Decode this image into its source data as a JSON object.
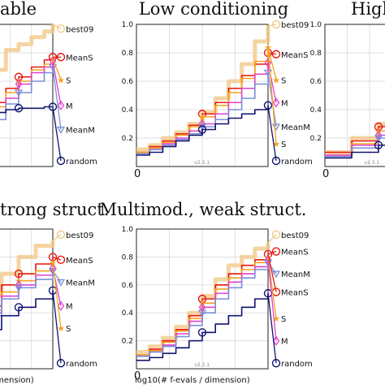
{
  "figure": {
    "version_label": "v2.3.1",
    "x_label": "log10(# f-evals / dimension)",
    "x_label_clipped": "dimension)",
    "zero_tick": "0"
  },
  "chart_data": [
    {
      "type": "line",
      "title": "able",
      "ylim": [
        0,
        1
      ],
      "yticks": [],
      "grid": true,
      "legend": [
        "best09",
        "MeanS",
        "S",
        "M",
        "MeanM",
        "random"
      ],
      "series": [
        {
          "name": "best09",
          "color": "#f2c98a",
          "x": [
            0,
            0.1,
            0.2,
            0.3,
            0.45,
            0.6,
            0.75,
            0.9,
            1.0
          ],
          "y": [
            0.25,
            0.35,
            0.55,
            0.68,
            0.82,
            0.86,
            0.91,
            0.95,
            1.0
          ]
        },
        {
          "name": "MeanS",
          "color": "#e8160c",
          "x": [
            0,
            0.15,
            0.3,
            0.45,
            0.6,
            0.75,
            0.9,
            1.0
          ],
          "y": [
            0.2,
            0.3,
            0.45,
            0.55,
            0.63,
            0.7,
            0.75,
            0.77
          ]
        },
        {
          "name": "S",
          "color": "#f5a21e",
          "x": [
            0,
            0.15,
            0.3,
            0.45,
            0.6,
            0.75,
            0.9,
            1.0
          ],
          "y": [
            0.2,
            0.28,
            0.42,
            0.52,
            0.6,
            0.68,
            0.72,
            0.76
          ]
        },
        {
          "name": "M",
          "color": "#e040d0",
          "x": [
            0,
            0.15,
            0.3,
            0.45,
            0.6,
            0.75,
            0.9,
            1.0
          ],
          "y": [
            0.18,
            0.25,
            0.38,
            0.48,
            0.58,
            0.66,
            0.7,
            0.74
          ]
        },
        {
          "name": "MeanM",
          "color": "#7a8fd8",
          "x": [
            0,
            0.15,
            0.3,
            0.45,
            0.6,
            0.75,
            0.9,
            1.0
          ],
          "y": [
            0.16,
            0.22,
            0.33,
            0.44,
            0.52,
            0.6,
            0.66,
            0.7
          ]
        },
        {
          "name": "random",
          "color": "#101570",
          "x": [
            0,
            0.15,
            0.3,
            0.45,
            0.6,
            0.75,
            0.9,
            1.0
          ],
          "y": [
            0.35,
            0.37,
            0.38,
            0.4,
            0.41,
            0.41,
            0.42,
            0.42
          ]
        }
      ],
      "legend_end_y": [
        0.97,
        0.77,
        0.61,
        0.43,
        0.26,
        0.04
      ]
    },
    {
      "type": "line",
      "title": "Low conditioning",
      "ylim": [
        0,
        1
      ],
      "yticks": [
        "0.2",
        "0.4",
        "0.6",
        "0.8",
        "1.0"
      ],
      "grid": true,
      "legend": [
        "best09",
        "MeanS",
        "S",
        "M",
        "MeanM",
        "S",
        "random"
      ],
      "series": [
        {
          "name": "best09",
          "color": "#f2c98a",
          "x": [
            0,
            0.1,
            0.2,
            0.3,
            0.4,
            0.5,
            0.6,
            0.7,
            0.8,
            0.9,
            1.0
          ],
          "y": [
            0.12,
            0.15,
            0.2,
            0.24,
            0.3,
            0.38,
            0.48,
            0.6,
            0.72,
            0.88,
            0.99
          ]
        },
        {
          "name": "MeanS",
          "color": "#e8160c",
          "x": [
            0,
            0.1,
            0.2,
            0.3,
            0.4,
            0.5,
            0.6,
            0.7,
            0.8,
            0.9,
            1.0
          ],
          "y": [
            0.1,
            0.14,
            0.18,
            0.23,
            0.29,
            0.37,
            0.45,
            0.55,
            0.64,
            0.72,
            0.8
          ]
        },
        {
          "name": "S",
          "color": "#f5a21e",
          "x": [
            0,
            0.1,
            0.2,
            0.3,
            0.4,
            0.5,
            0.6,
            0.7,
            0.8,
            0.9,
            1.0
          ],
          "y": [
            0.1,
            0.13,
            0.17,
            0.22,
            0.28,
            0.35,
            0.43,
            0.52,
            0.62,
            0.74,
            0.84
          ]
        },
        {
          "name": "M",
          "color": "#e040d0",
          "x": [
            0,
            0.1,
            0.2,
            0.3,
            0.4,
            0.5,
            0.6,
            0.7,
            0.8,
            0.9,
            1.0
          ],
          "y": [
            0.09,
            0.12,
            0.16,
            0.2,
            0.25,
            0.3,
            0.37,
            0.45,
            0.55,
            0.65,
            0.73
          ]
        },
        {
          "name": "MeanM",
          "color": "#7a8fd8",
          "x": [
            0,
            0.1,
            0.2,
            0.3,
            0.4,
            0.5,
            0.6,
            0.7,
            0.8,
            0.9,
            1.0
          ],
          "y": [
            0.09,
            0.12,
            0.15,
            0.19,
            0.23,
            0.28,
            0.33,
            0.4,
            0.48,
            0.58,
            0.66
          ]
        },
        {
          "name": "random",
          "color": "#101570",
          "x": [
            0,
            0.1,
            0.2,
            0.3,
            0.4,
            0.5,
            0.6,
            0.7,
            0.8,
            0.9,
            1.0
          ],
          "y": [
            0.08,
            0.1,
            0.14,
            0.18,
            0.22,
            0.26,
            0.3,
            0.34,
            0.37,
            0.4,
            0.43
          ]
        }
      ],
      "legend_end_y": [
        1.0,
        0.79,
        0.61,
        0.45,
        0.28,
        0.16,
        0.04
      ]
    },
    {
      "type": "line",
      "title": "High",
      "ylim": [
        0,
        1
      ],
      "yticks": [
        "0.2",
        "0.4",
        "0.6",
        "0.8",
        "1.0"
      ],
      "grid": true,
      "legend": [],
      "series": [
        {
          "name": "best09",
          "color": "#f2c98a",
          "x": [
            0,
            0.3,
            0.6,
            1.0
          ],
          "y": [
            0.1,
            0.2,
            0.3,
            0.4
          ]
        },
        {
          "name": "MeanS",
          "color": "#e8160c",
          "x": [
            0,
            0.3,
            0.6,
            1.0
          ],
          "y": [
            0.1,
            0.18,
            0.28,
            0.38
          ]
        },
        {
          "name": "S",
          "color": "#f5a21e",
          "x": [
            0,
            0.3,
            0.6,
            1.0
          ],
          "y": [
            0.08,
            0.16,
            0.25,
            0.34
          ]
        },
        {
          "name": "M",
          "color": "#e040d0",
          "x": [
            0,
            0.3,
            0.6,
            1.0
          ],
          "y": [
            0.08,
            0.15,
            0.22,
            0.3
          ]
        },
        {
          "name": "MeanM",
          "color": "#7a8fd8",
          "x": [
            0,
            0.3,
            0.6,
            1.0
          ],
          "y": [
            0.07,
            0.13,
            0.2,
            0.27
          ]
        },
        {
          "name": "random",
          "color": "#101570",
          "x": [
            0,
            0.3,
            0.6,
            1.0
          ],
          "y": [
            0.06,
            0.1,
            0.15,
            0.2
          ]
        }
      ],
      "legend_end_y": []
    },
    {
      "type": "line",
      "title": "trong struct.",
      "ylim": [
        0,
        1
      ],
      "yticks": [],
      "grid": true,
      "legend": [
        "best09",
        "MeanS",
        "MeanM",
        "M",
        "S",
        "random"
      ],
      "series": [
        {
          "name": "best09",
          "color": "#f2c98a",
          "x": [
            0,
            0.2,
            0.4,
            0.6,
            0.8,
            1.0
          ],
          "y": [
            0.35,
            0.52,
            0.68,
            0.8,
            0.88,
            0.92
          ]
        },
        {
          "name": "MeanS",
          "color": "#e8160c",
          "x": [
            0,
            0.2,
            0.4,
            0.6,
            0.8,
            1.0
          ],
          "y": [
            0.3,
            0.45,
            0.6,
            0.68,
            0.75,
            0.8
          ]
        },
        {
          "name": "S",
          "color": "#f5a21e",
          "x": [
            0,
            0.2,
            0.4,
            0.6,
            0.8,
            1.0
          ],
          "y": [
            0.28,
            0.42,
            0.55,
            0.63,
            0.7,
            0.76
          ]
        },
        {
          "name": "M",
          "color": "#e040d0",
          "x": [
            0,
            0.2,
            0.4,
            0.6,
            0.8,
            1.0
          ],
          "y": [
            0.26,
            0.4,
            0.52,
            0.6,
            0.67,
            0.72
          ]
        },
        {
          "name": "MeanM",
          "color": "#7a8fd8",
          "x": [
            0,
            0.2,
            0.4,
            0.6,
            0.8,
            1.0
          ],
          "y": [
            0.25,
            0.38,
            0.5,
            0.58,
            0.64,
            0.7
          ]
        },
        {
          "name": "random",
          "color": "#101570",
          "x": [
            0,
            0.2,
            0.4,
            0.6,
            0.8,
            1.0
          ],
          "y": [
            0.2,
            0.28,
            0.38,
            0.44,
            0.5,
            0.56
          ]
        }
      ],
      "legend_end_y": [
        0.96,
        0.78,
        0.62,
        0.45,
        0.29,
        0.04
      ]
    },
    {
      "type": "line",
      "title": "Multimod., weak struct.",
      "ylim": [
        0,
        1
      ],
      "yticks": [
        "0.2",
        "0.4",
        "0.6",
        "0.8",
        "1.0"
      ],
      "grid": true,
      "legend": [
        "best09",
        "MeanS",
        "MeanM",
        "MeanS",
        "S",
        "M",
        "random"
      ],
      "series": [
        {
          "name": "best09",
          "color": "#f2c98a",
          "x": [
            0,
            0.1,
            0.2,
            0.3,
            0.4,
            0.5,
            0.6,
            0.7,
            0.8,
            0.9,
            1.0
          ],
          "y": [
            0.12,
            0.16,
            0.22,
            0.3,
            0.4,
            0.52,
            0.64,
            0.74,
            0.8,
            0.86,
            0.9
          ]
        },
        {
          "name": "MeanS",
          "color": "#e8160c",
          "x": [
            0,
            0.1,
            0.2,
            0.3,
            0.4,
            0.5,
            0.6,
            0.7,
            0.8,
            0.9,
            1.0
          ],
          "y": [
            0.1,
            0.14,
            0.2,
            0.28,
            0.38,
            0.5,
            0.6,
            0.68,
            0.74,
            0.78,
            0.82
          ]
        },
        {
          "name": "S",
          "color": "#f5a21e",
          "x": [
            0,
            0.1,
            0.2,
            0.3,
            0.4,
            0.5,
            0.6,
            0.7,
            0.8,
            0.9,
            1.0
          ],
          "y": [
            0.1,
            0.13,
            0.19,
            0.27,
            0.36,
            0.47,
            0.57,
            0.65,
            0.71,
            0.76,
            0.8
          ]
        },
        {
          "name": "M",
          "color": "#e040d0",
          "x": [
            0,
            0.1,
            0.2,
            0.3,
            0.4,
            0.5,
            0.6,
            0.7,
            0.8,
            0.9,
            1.0
          ],
          "y": [
            0.09,
            0.12,
            0.17,
            0.25,
            0.34,
            0.44,
            0.54,
            0.62,
            0.68,
            0.73,
            0.78
          ]
        },
        {
          "name": "MeanM",
          "color": "#7a8fd8",
          "x": [
            0,
            0.1,
            0.2,
            0.3,
            0.4,
            0.5,
            0.6,
            0.7,
            0.8,
            0.9,
            1.0
          ],
          "y": [
            0.09,
            0.12,
            0.16,
            0.23,
            0.31,
            0.4,
            0.5,
            0.58,
            0.65,
            0.71,
            0.76
          ]
        },
        {
          "name": "random",
          "color": "#101570",
          "x": [
            0,
            0.1,
            0.2,
            0.3,
            0.4,
            0.5,
            0.6,
            0.7,
            0.8,
            0.9,
            1.0
          ],
          "y": [
            0.06,
            0.08,
            0.11,
            0.15,
            0.2,
            0.26,
            0.32,
            0.38,
            0.44,
            0.5,
            0.54
          ]
        }
      ],
      "legend_end_y": [
        0.96,
        0.84,
        0.68,
        0.55,
        0.36,
        0.2,
        0.04
      ]
    }
  ]
}
